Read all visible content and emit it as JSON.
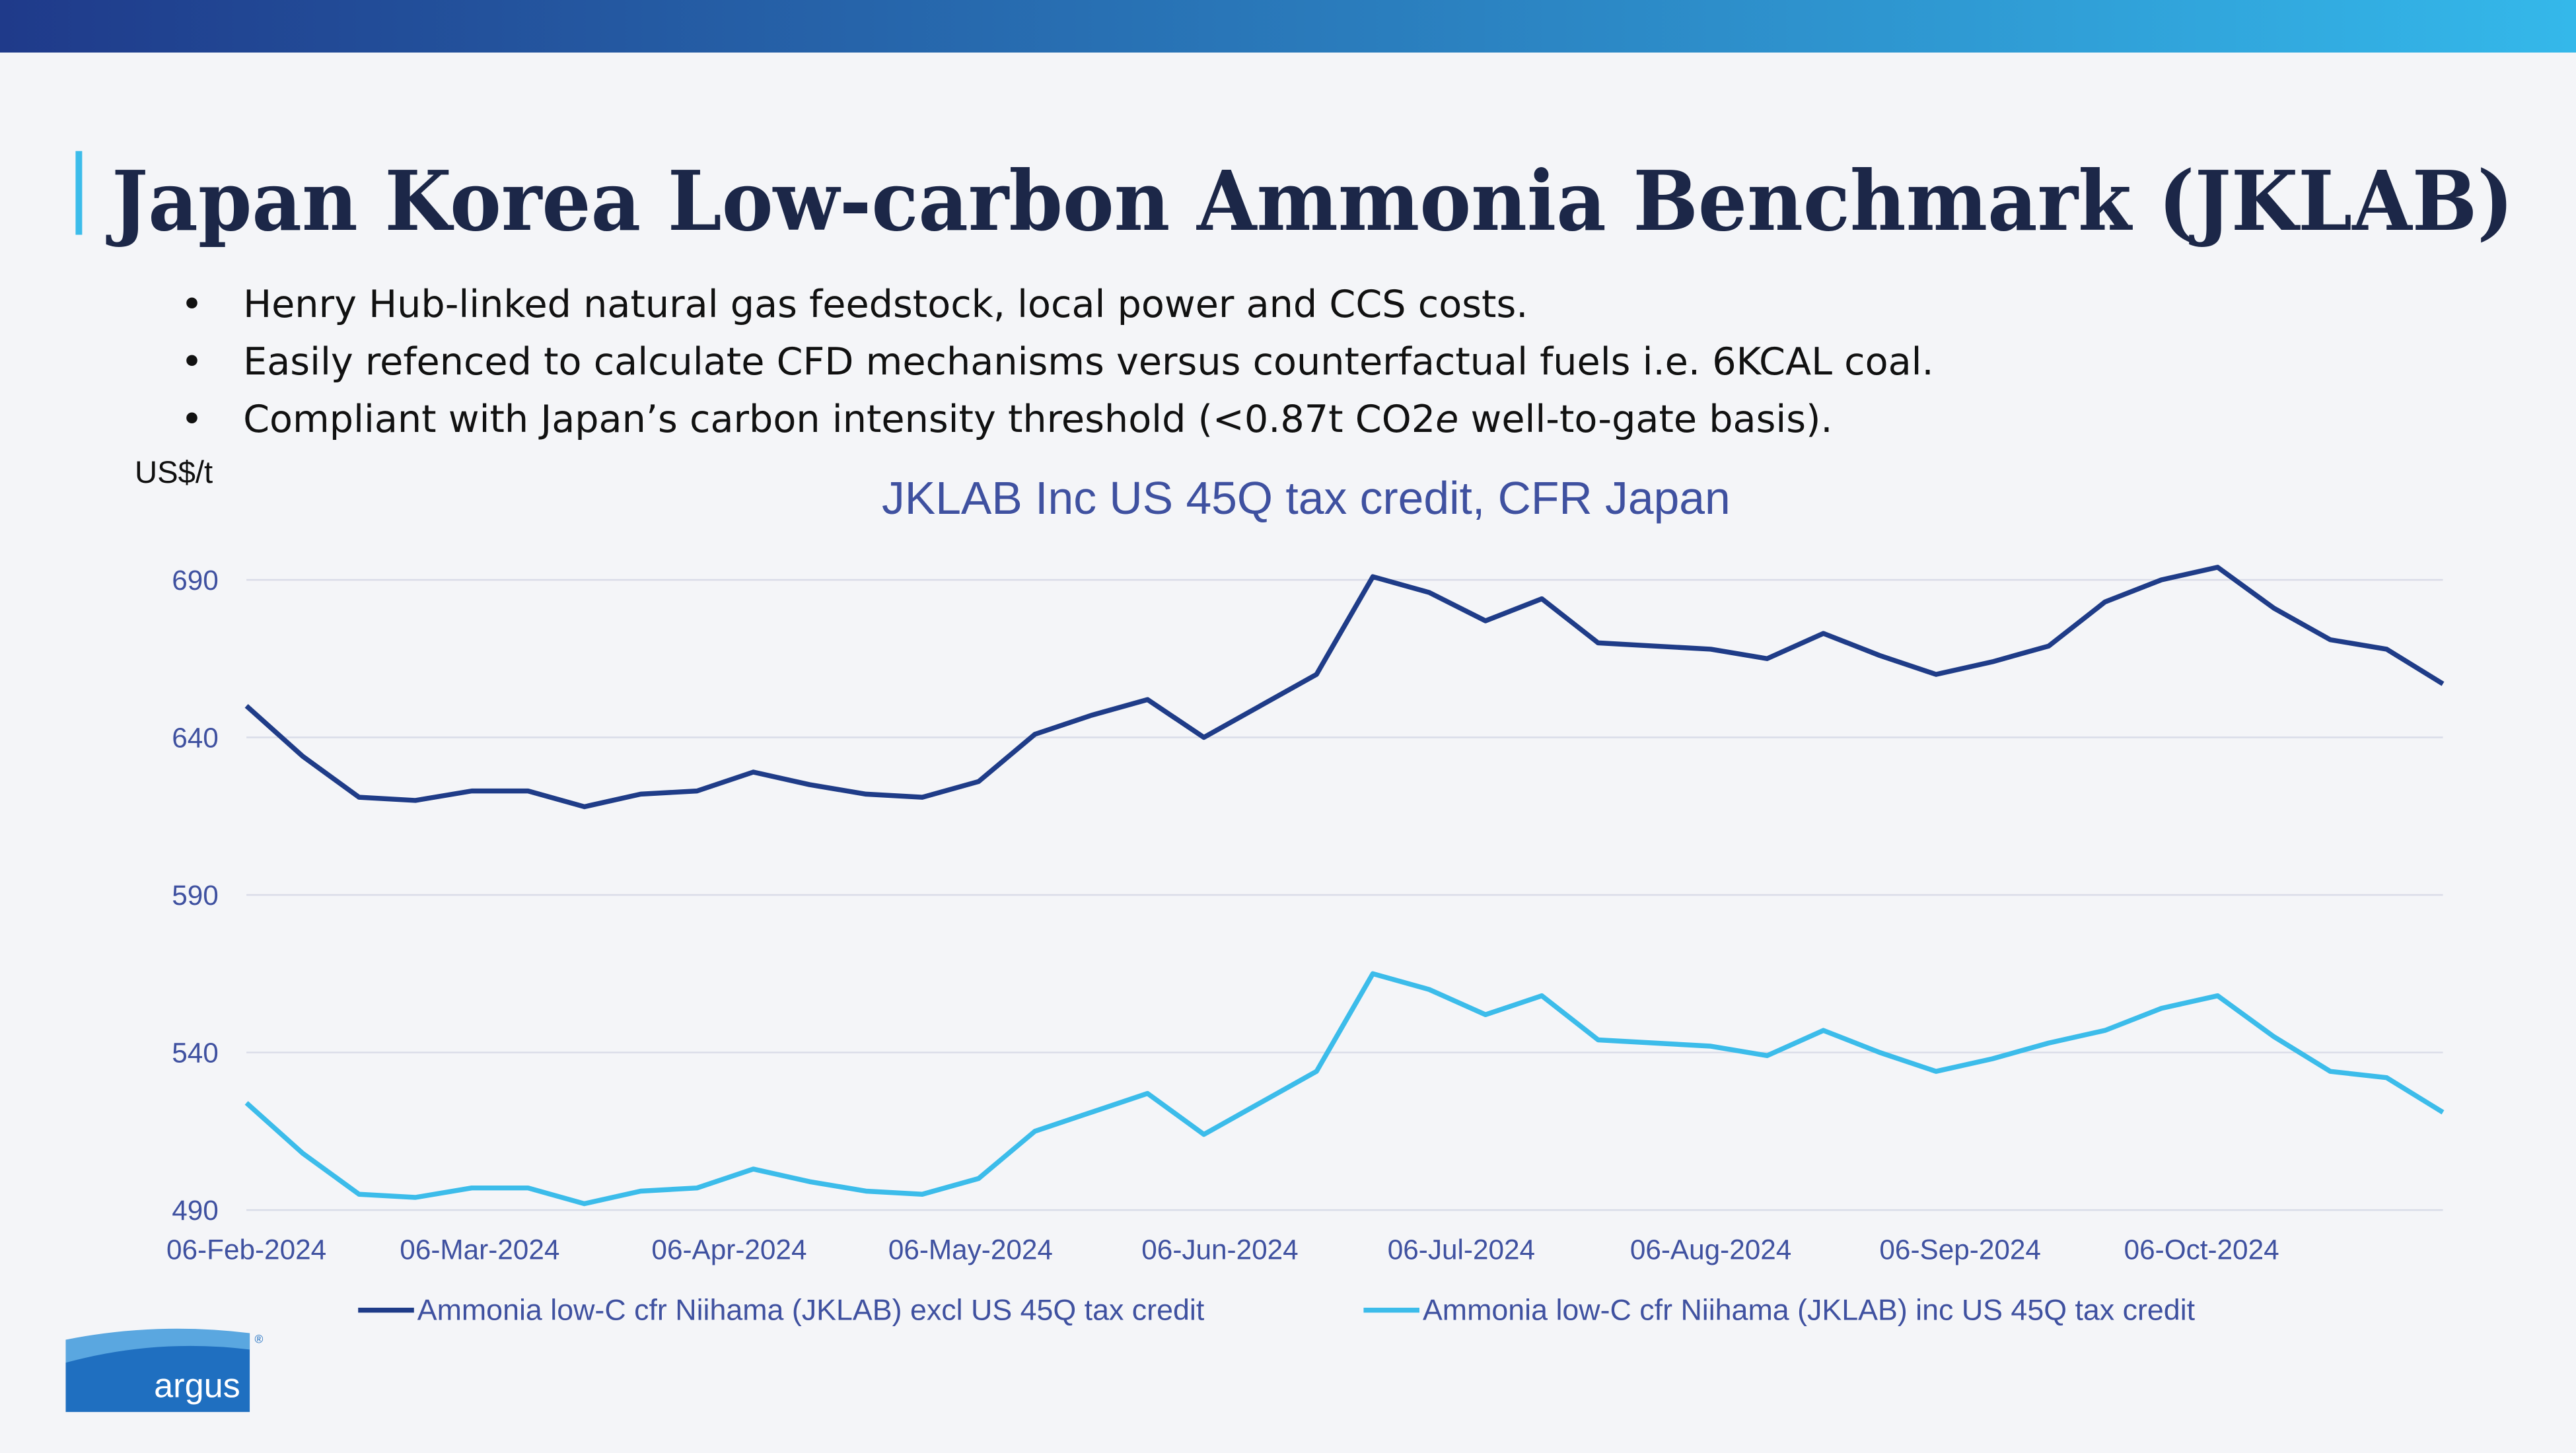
{
  "header": {
    "title": "Japan Korea Low-carbon Ammonia Benchmark (JKLAB)",
    "bullets": [
      "Henry Hub-linked natural gas feedstock, local power and CCS costs.",
      "Easily refenced to calculate CFD mechanisms versus counterfactual fuels i.e. 6KCAL coal.",
      [
        "Compliant with Japan’s carbon intensity threshold (<0.87t CO2",
        "e",
        " well-to-gate basis)."
      ]
    ]
  },
  "logo": {
    "text": "argus",
    "mark": "®"
  },
  "chart_data": {
    "type": "line",
    "title": "JKLAB Inc US 45Q tax credit, CFR Japan",
    "y_label": "US$/t",
    "x": [
      "2024-02-06",
      "2024-02-13",
      "2024-02-20",
      "2024-02-27",
      "2024-03-05",
      "2024-03-12",
      "2024-03-19",
      "2024-03-26",
      "2024-04-02",
      "2024-04-09",
      "2024-04-16",
      "2024-04-23",
      "2024-04-30",
      "2024-05-07",
      "2024-05-14",
      "2024-05-21",
      "2024-05-28",
      "2024-06-04",
      "2024-06-11",
      "2024-06-18",
      "2024-06-25",
      "2024-07-02",
      "2024-07-09",
      "2024-07-16",
      "2024-07-23",
      "2024-07-30",
      "2024-08-06",
      "2024-08-13",
      "2024-08-20",
      "2024-08-27",
      "2024-09-03",
      "2024-09-10",
      "2024-09-17",
      "2024-09-24",
      "2024-10-01",
      "2024-10-08",
      "2024-10-15",
      "2024-10-22",
      "2024-10-29",
      "2024-11-05"
    ],
    "series": [
      {
        "name": "Ammonia low-C cfr Niihama (JKLAB) excl US 45Q tax credit",
        "color": "#1f3c88",
        "values": [
          650,
          634,
          621,
          620,
          623,
          623,
          618,
          622,
          623,
          629,
          625,
          622,
          621,
          626,
          641,
          647,
          652,
          640,
          650,
          660,
          691,
          686,
          677,
          684,
          670,
          669,
          668,
          665,
          673,
          666,
          660,
          664,
          669,
          683,
          690,
          694,
          681,
          671,
          668,
          657
        ]
      },
      {
        "name": "Ammonia low-C cfr Niihama (JKLAB) inc US 45Q tax credit",
        "color": "#3cbcea",
        "values": [
          524,
          508,
          495,
          494,
          497,
          497,
          492,
          496,
          497,
          503,
          499,
          496,
          495,
          500,
          515,
          521,
          527,
          514,
          524,
          534,
          565,
          560,
          552,
          558,
          544,
          543,
          542,
          539,
          547,
          540,
          534,
          538,
          543,
          547,
          554,
          558,
          545,
          534,
          532,
          521
        ]
      }
    ],
    "xlim": [
      "2024-02-06",
      "2024-11-05"
    ],
    "xticks": [
      {
        "value": "2024-02-06",
        "label": "06-Feb-2024"
      },
      {
        "value": "2024-03-06",
        "label": "06-Mar-2024"
      },
      {
        "value": "2024-04-06",
        "label": "06-Apr-2024"
      },
      {
        "value": "2024-05-06",
        "label": "06-May-2024"
      },
      {
        "value": "2024-06-06",
        "label": "06-Jun-2024"
      },
      {
        "value": "2024-07-06",
        "label": "06-Jul-2024"
      },
      {
        "value": "2024-08-06",
        "label": "06-Aug-2024"
      },
      {
        "value": "2024-09-06",
        "label": "06-Sep-2024"
      },
      {
        "value": "2024-10-06",
        "label": "06-Oct-2024"
      }
    ],
    "ylim": [
      490,
      700
    ],
    "yticks": [
      490,
      540,
      590,
      640,
      690
    ],
    "grid": true,
    "legend": "bottom"
  }
}
